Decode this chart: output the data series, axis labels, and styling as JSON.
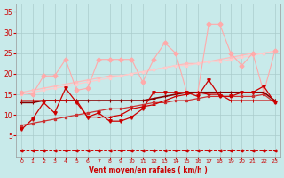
{
  "x": [
    0,
    1,
    2,
    3,
    4,
    5,
    6,
    7,
    8,
    9,
    10,
    11,
    12,
    13,
    14,
    15,
    16,
    17,
    18,
    19,
    20,
    21,
    22,
    23
  ],
  "line_rafales_upper": [
    15.5,
    15.0,
    19.5,
    19.5,
    23.5,
    16.0,
    16.5,
    23.5,
    23.5,
    23.5,
    23.5,
    18.0,
    23.5,
    27.5,
    25.0,
    15.5,
    15.5,
    32.0,
    32.0,
    25.0,
    22.0,
    25.0,
    15.5,
    25.5
  ],
  "line_trend1": [
    15.5,
    16.0,
    16.5,
    17.0,
    17.5,
    18.0,
    18.5,
    19.0,
    19.5,
    19.5,
    20.0,
    20.5,
    21.0,
    21.5,
    22.0,
    22.5,
    22.5,
    23.0,
    23.5,
    24.0,
    24.5,
    25.0,
    25.0,
    25.5
  ],
  "line_trend2": [
    15.0,
    15.5,
    16.0,
    16.5,
    17.0,
    17.5,
    18.0,
    18.5,
    19.0,
    19.5,
    20.0,
    20.5,
    21.0,
    21.5,
    22.0,
    22.0,
    22.5,
    23.0,
    23.0,
    23.5,
    24.0,
    24.5,
    25.0,
    25.5
  ],
  "line_vent_moy_zigzag": [
    6.5,
    9.0,
    13.0,
    10.5,
    16.5,
    13.0,
    9.5,
    10.5,
    8.5,
    8.5,
    9.5,
    11.5,
    15.5,
    15.5,
    15.5,
    15.5,
    14.5,
    18.5,
    14.5,
    14.5,
    15.5,
    15.5,
    17.0,
    13.0
  ],
  "line_flat_dark1": [
    13.0,
    13.0,
    13.5,
    13.5,
    13.5,
    13.5,
    13.5,
    13.5,
    13.5,
    13.5,
    13.5,
    13.5,
    14.0,
    14.5,
    15.0,
    15.5,
    15.5,
    15.5,
    15.5,
    15.5,
    15.5,
    15.5,
    15.5,
    13.5
  ],
  "line_flat_dark2": [
    13.5,
    13.5,
    13.5,
    13.5,
    13.5,
    13.5,
    9.5,
    9.5,
    9.5,
    10.0,
    11.5,
    12.0,
    12.5,
    13.5,
    14.5,
    15.0,
    15.5,
    15.0,
    15.0,
    13.5,
    13.5,
    13.5,
    13.5,
    13.5
  ],
  "line_trend3": [
    7.5,
    8.0,
    8.5,
    9.0,
    9.5,
    10.0,
    10.5,
    11.0,
    11.5,
    11.5,
    12.0,
    12.5,
    13.0,
    13.0,
    13.5,
    13.5,
    14.0,
    14.5,
    14.5,
    14.5,
    14.5,
    14.5,
    15.0,
    13.0
  ],
  "line_bottom": [
    1.5,
    1.5,
    1.5,
    1.5,
    1.5,
    1.5,
    1.5,
    1.5,
    1.5,
    1.5,
    1.5,
    1.5,
    1.5,
    1.5,
    1.5,
    1.5,
    1.5,
    1.5,
    1.5,
    1.5,
    1.5,
    1.5,
    1.5,
    1.5
  ],
  "color_rafales": "#ffaaaa",
  "color_trend_upper": "#ffbbbb",
  "color_trend2": "#ffcccc",
  "color_zigzag": "#cc0000",
  "color_dark1": "#880000",
  "color_dark2": "#cc0000",
  "color_trend3": "#cc3333",
  "color_bottom": "#cc0000",
  "bg_color": "#c8eaea",
  "grid_color": "#aacccc",
  "axis_color": "#cc0000",
  "xlabel": "Vent moyen/en rafales ( km/h )",
  "ylim": [
    0,
    37
  ],
  "xlim": [
    -0.5,
    23.5
  ],
  "yticks": [
    5,
    10,
    15,
    20,
    25,
    30,
    35
  ],
  "xticks": [
    0,
    1,
    2,
    3,
    4,
    5,
    6,
    7,
    8,
    9,
    10,
    11,
    12,
    13,
    14,
    15,
    16,
    17,
    18,
    19,
    20,
    21,
    22,
    23
  ]
}
